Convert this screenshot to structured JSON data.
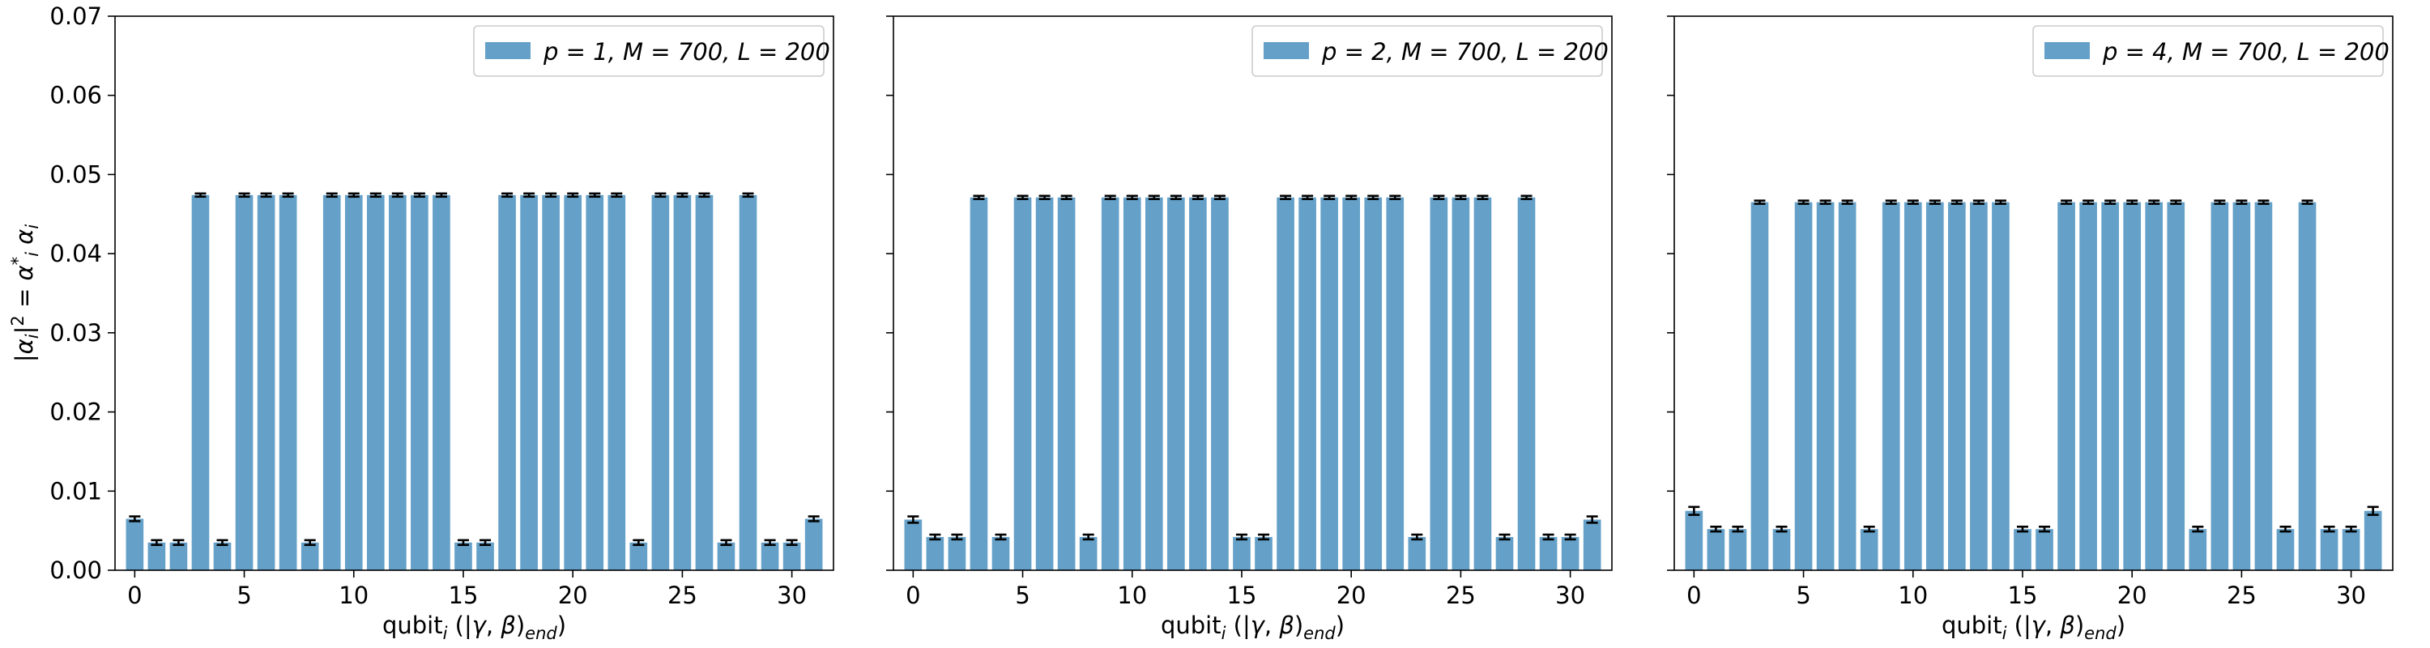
{
  "chart_data": [
    {
      "type": "bar",
      "legend": "p = 1, M = 700, L = 200",
      "legend_placement": "top-right",
      "ylabel": "|α_i|² = α_i* α_i",
      "xlabel": "qubit_i (|γ, β)_end)",
      "ylim": [
        0,
        0.07
      ],
      "yticks": [
        "0.00",
        "0.01",
        "0.02",
        "0.03",
        "0.04",
        "0.05",
        "0.06",
        "0.07"
      ],
      "xticks": [
        "0",
        "5",
        "10",
        "15",
        "20",
        "25",
        "30"
      ],
      "color": "#64a0c8",
      "categories": [
        0,
        1,
        2,
        3,
        4,
        5,
        6,
        7,
        8,
        9,
        10,
        11,
        12,
        13,
        14,
        15,
        16,
        17,
        18,
        19,
        20,
        21,
        22,
        23,
        24,
        25,
        26,
        27,
        28,
        29,
        30,
        31
      ],
      "values": [
        0.0065,
        0.0035,
        0.0035,
        0.0474,
        0.0035,
        0.0474,
        0.0474,
        0.0474,
        0.0035,
        0.0474,
        0.0474,
        0.0474,
        0.0474,
        0.0474,
        0.0474,
        0.0035,
        0.0035,
        0.0474,
        0.0474,
        0.0474,
        0.0474,
        0.0474,
        0.0474,
        0.0035,
        0.0474,
        0.0474,
        0.0474,
        0.0035,
        0.0474,
        0.0035,
        0.0035,
        0.0065
      ],
      "errors": [
        0.0003,
        0.0003,
        0.0003,
        0.0002,
        0.0003,
        0.0002,
        0.0002,
        0.0002,
        0.0003,
        0.0002,
        0.0002,
        0.0002,
        0.0002,
        0.0002,
        0.0002,
        0.0003,
        0.0003,
        0.0002,
        0.0002,
        0.0002,
        0.0002,
        0.0002,
        0.0002,
        0.0003,
        0.0002,
        0.0002,
        0.0002,
        0.0003,
        0.0002,
        0.0003,
        0.0003,
        0.0003
      ]
    },
    {
      "type": "bar",
      "legend": "p = 2, M = 700, L = 200",
      "legend_placement": "top-right",
      "xlabel": "qubit_i (|γ, β)_end)",
      "ylim": [
        0,
        0.07
      ],
      "xticks": [
        "0",
        "5",
        "10",
        "15",
        "20",
        "25",
        "30"
      ],
      "color": "#64a0c8",
      "categories": [
        0,
        1,
        2,
        3,
        4,
        5,
        6,
        7,
        8,
        9,
        10,
        11,
        12,
        13,
        14,
        15,
        16,
        17,
        18,
        19,
        20,
        21,
        22,
        23,
        24,
        25,
        26,
        27,
        28,
        29,
        30,
        31
      ],
      "values": [
        0.0064,
        0.0042,
        0.0042,
        0.0471,
        0.0042,
        0.0471,
        0.0471,
        0.0471,
        0.0042,
        0.0471,
        0.0471,
        0.0471,
        0.0471,
        0.0471,
        0.0471,
        0.0042,
        0.0042,
        0.0471,
        0.0471,
        0.0471,
        0.0471,
        0.0471,
        0.0471,
        0.0042,
        0.0471,
        0.0471,
        0.0471,
        0.0042,
        0.0471,
        0.0042,
        0.0042,
        0.0064
      ],
      "errors": [
        0.0004,
        0.0003,
        0.0003,
        0.0002,
        0.0003,
        0.0002,
        0.0002,
        0.0002,
        0.0003,
        0.0002,
        0.0002,
        0.0002,
        0.0002,
        0.0002,
        0.0002,
        0.0003,
        0.0003,
        0.0002,
        0.0002,
        0.0002,
        0.0002,
        0.0002,
        0.0002,
        0.0003,
        0.0002,
        0.0002,
        0.0002,
        0.0003,
        0.0002,
        0.0003,
        0.0003,
        0.0004
      ]
    },
    {
      "type": "bar",
      "legend": "p = 4, M = 700, L = 200",
      "legend_placement": "top-right",
      "xlabel": "qubit_i (|γ, β)_end)",
      "ylim": [
        0,
        0.07
      ],
      "xticks": [
        "0",
        "5",
        "10",
        "15",
        "20",
        "25",
        "30"
      ],
      "color": "#64a0c8",
      "categories": [
        0,
        1,
        2,
        3,
        4,
        5,
        6,
        7,
        8,
        9,
        10,
        11,
        12,
        13,
        14,
        15,
        16,
        17,
        18,
        19,
        20,
        21,
        22,
        23,
        24,
        25,
        26,
        27,
        28,
        29,
        30,
        31
      ],
      "values": [
        0.0075,
        0.0052,
        0.0052,
        0.0465,
        0.0052,
        0.0465,
        0.0465,
        0.0465,
        0.0052,
        0.0465,
        0.0465,
        0.0465,
        0.0465,
        0.0465,
        0.0465,
        0.0052,
        0.0052,
        0.0465,
        0.0465,
        0.0465,
        0.0465,
        0.0465,
        0.0465,
        0.0052,
        0.0465,
        0.0465,
        0.0465,
        0.0052,
        0.0465,
        0.0052,
        0.0052,
        0.0075
      ],
      "errors": [
        0.0005,
        0.0003,
        0.0003,
        0.0002,
        0.0003,
        0.0002,
        0.0002,
        0.0002,
        0.0003,
        0.0002,
        0.0002,
        0.0002,
        0.0002,
        0.0002,
        0.0002,
        0.0003,
        0.0003,
        0.0002,
        0.0002,
        0.0002,
        0.0002,
        0.0002,
        0.0002,
        0.0003,
        0.0002,
        0.0002,
        0.0002,
        0.0003,
        0.0002,
        0.0003,
        0.0003,
        0.0005
      ]
    }
  ]
}
